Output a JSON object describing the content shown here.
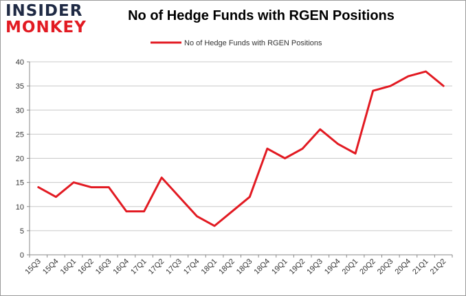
{
  "brand": {
    "logo_line1": "INSIDER",
    "logo_line2": "MONKEY",
    "accent_color": "#e21a22",
    "dark_color": "#1f2a44"
  },
  "chart_data": {
    "type": "line",
    "title": "No of Hedge Funds with RGEN Positions",
    "xlabel": "",
    "ylabel": "",
    "ylim": [
      0,
      40
    ],
    "yticks": [
      0,
      5,
      10,
      15,
      20,
      25,
      30,
      35,
      40
    ],
    "grid": "horizontal",
    "legend_position": "top-center",
    "categories": [
      "15Q3",
      "15Q4",
      "16Q1",
      "16Q2",
      "16Q3",
      "16Q4",
      "17Q1",
      "17Q2",
      "17Q3",
      "17Q4",
      "18Q1",
      "18Q2",
      "18Q3",
      "18Q4",
      "19Q1",
      "19Q2",
      "19Q3",
      "19Q4",
      "20Q1",
      "20Q2",
      "20Q3",
      "20Q4",
      "21Q1",
      "21Q2"
    ],
    "series": [
      {
        "name": "No of Hedge Funds with RGEN Positions",
        "color": "#e21a22",
        "values": [
          14,
          12,
          15,
          14,
          14,
          9,
          9,
          16,
          12,
          8,
          6,
          9,
          12,
          22,
          20,
          22,
          26,
          23,
          21,
          34,
          35,
          37,
          38,
          35
        ]
      }
    ]
  }
}
